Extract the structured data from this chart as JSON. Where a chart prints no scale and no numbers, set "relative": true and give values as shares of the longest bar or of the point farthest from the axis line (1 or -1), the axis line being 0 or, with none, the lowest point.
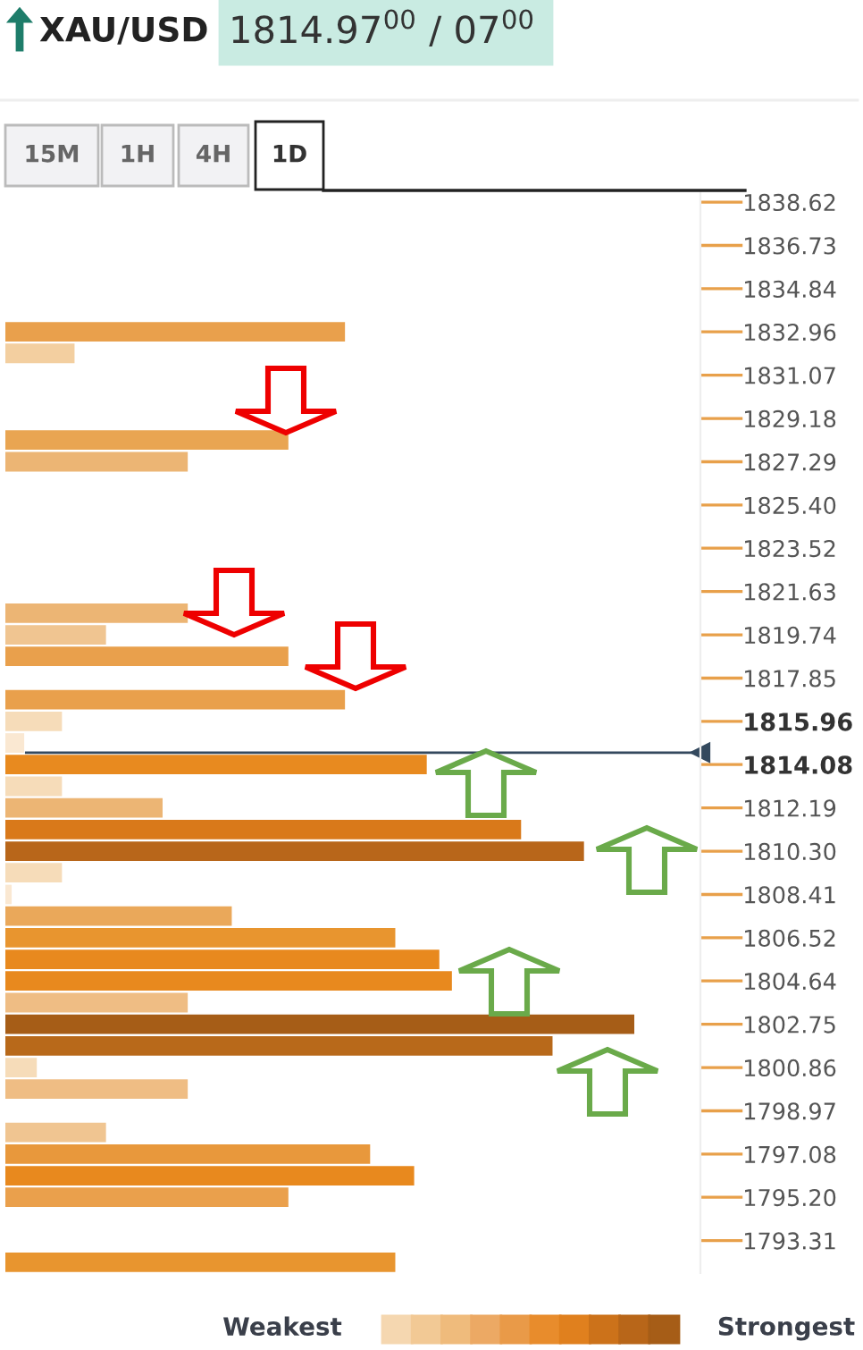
{
  "chart_data": {
    "type": "bar",
    "orientation": "horizontal",
    "relative": true,
    "title": "XAU/USD",
    "subtitle": "1814.97$^{00}$ / 07$^{00}$",
    "x": [
      1832.96,
      1832.02,
      1828.24,
      1827.29,
      1820.68,
      1819.74,
      1818.8,
      1816.91,
      1815.96,
      1815.02,
      1814.08,
      1813.13,
      1812.19,
      1811.24,
      1810.3,
      1809.36,
      1808.41,
      1807.47,
      1806.52,
      1805.58,
      1804.64,
      1803.69,
      1802.75,
      1801.8,
      1800.86,
      1799.92,
      1798.03,
      1797.08,
      1796.14,
      1795.2,
      1792.36
    ],
    "values": [
      0.54,
      0.11,
      0.45,
      0.29,
      0.29,
      0.16,
      0.45,
      0.54,
      0.09,
      0.03,
      0.67,
      0.09,
      0.25,
      0.82,
      0.92,
      0.09,
      0.01,
      0.36,
      0.62,
      0.69,
      0.71,
      0.29,
      1,
      0.87,
      0.05,
      0.29,
      0.16,
      0.58,
      0.65,
      0.45,
      0.62
    ],
    "colors": [
      "#e9a04c",
      "#f3cfa0",
      "#e9a552",
      "#ecb574",
      "#ecb574",
      "#f0c591",
      "#e9a04c",
      "#e9a04c",
      "#f6dcb9",
      "#fae8d2",
      "#e88a1f",
      "#f6dcb9",
      "#ecb574",
      "#d9791a",
      "#b8661a",
      "#f6dcb9",
      "#fae8d2",
      "#eaa85a",
      "#e8952f",
      "#e8891e",
      "#e8891e",
      "#efbd84",
      "#a65d17",
      "#b8691a",
      "#f6dcb9",
      "#efbd84",
      "#f0c591",
      "#e8983c",
      "#e8891e",
      "#eaa04c",
      "#e8952f"
    ],
    "ylim": [
      1791.89,
      1839.09
    ],
    "yticks": [
      1838.62,
      1836.73,
      1834.84,
      1832.96,
      1831.07,
      1829.18,
      1827.29,
      {
        "value": 1825.4,
        "label": "1825.40"
      },
      1823.52,
      1821.63,
      1819.74,
      1817.85,
      1815.96,
      1814.08,
      1812.19,
      {
        "value": 1810.3,
        "label": "1810.30"
      },
      1808.41,
      1806.52,
      1804.64,
      1802.75,
      1800.86,
      1798.97,
      1797.08,
      {
        "value": 1795.2,
        "label": "1795.20"
      },
      1793.31
    ],
    "ref_lines": [
      {
        "axis": "y",
        "value": 1814.6,
        "color": "#34495e"
      }
    ],
    "annotations": [
      "15M",
      "1H",
      "4H",
      "1D",
      "Weakest",
      "Strongest"
    ],
    "tick_labels": "y"
  }
}
